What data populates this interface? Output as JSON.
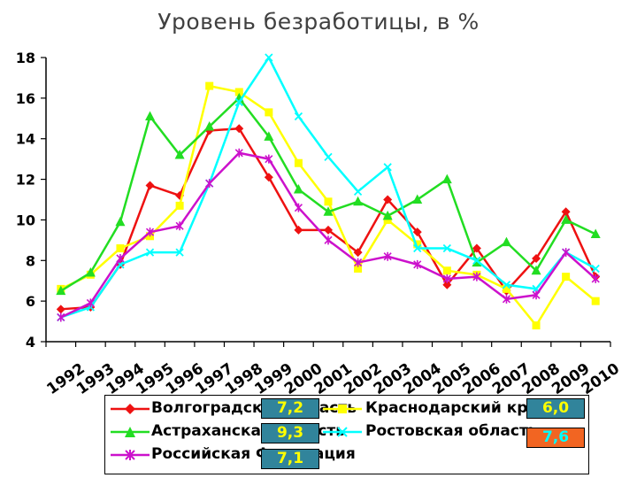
{
  "chart_data": {
    "type": "line",
    "title": "Уровень безработицы, в %",
    "categories": [
      "1992",
      "1993",
      "1994",
      "1995",
      "1996",
      "1997",
      "1998",
      "1999",
      "2000",
      "2001",
      "2002",
      "2003",
      "2004",
      "2005",
      "2006",
      "2007",
      "2008",
      "2009",
      "2010"
    ],
    "ylim": [
      4,
      18
    ],
    "yticks": [
      4,
      6,
      8,
      10,
      12,
      14,
      16,
      18
    ],
    "grid": false,
    "legend_position": "bottom",
    "series": [
      {
        "name": "Волгоградская область",
        "color": "#ee1111",
        "marker": "diamond",
        "values": [
          5.6,
          5.7,
          7.8,
          11.7,
          11.2,
          14.4,
          14.5,
          12.1,
          9.5,
          9.5,
          8.4,
          11.0,
          9.4,
          6.8,
          8.6,
          6.5,
          8.1,
          10.4,
          7.2
        ]
      },
      {
        "name": "Краснодарский край",
        "color": "#ffff00",
        "marker": "square",
        "values": [
          6.6,
          7.3,
          8.6,
          9.2,
          10.7,
          16.6,
          16.3,
          15.3,
          12.8,
          10.9,
          7.6,
          10.0,
          8.8,
          7.5,
          7.3,
          6.6,
          4.8,
          7.2,
          6.0
        ]
      },
      {
        "name": "Астраханская область",
        "color": "#22dd22",
        "marker": "triangle",
        "values": [
          6.5,
          7.4,
          9.9,
          15.1,
          13.2,
          14.6,
          16.0,
          14.1,
          11.5,
          10.4,
          10.9,
          10.2,
          11.0,
          12.0,
          7.9,
          8.9,
          7.5,
          10.0,
          9.3
        ]
      },
      {
        "name": "Ростовская область",
        "color": "#00ffff",
        "marker": "x",
        "values": [
          5.2,
          5.7,
          7.8,
          8.4,
          8.4,
          11.8,
          15.8,
          18.0,
          15.1,
          13.1,
          11.4,
          12.6,
          8.6,
          8.6,
          8.0,
          6.8,
          6.6,
          8.4,
          7.6
        ]
      },
      {
        "name": "Российская Федерация",
        "color": "#cc11cc",
        "marker": "star",
        "values": [
          5.2,
          5.9,
          8.1,
          9.4,
          9.7,
          11.8,
          13.3,
          13.0,
          10.6,
          9.0,
          7.9,
          8.2,
          7.8,
          7.1,
          7.2,
          6.1,
          6.3,
          8.4,
          7.1
        ]
      }
    ]
  },
  "legend": {
    "volgograd": "Волгоградская область",
    "krasnodar": "Краснодарский край",
    "astrakhan": "Астраханская область",
    "rostov": "Ростовская область",
    "russia": "Российская Федерация"
  },
  "badges": {
    "volgograd": "7,2",
    "krasnodar": "6,0",
    "astrakhan": "9,3",
    "rostov": "7,6",
    "russia": "7,1"
  }
}
